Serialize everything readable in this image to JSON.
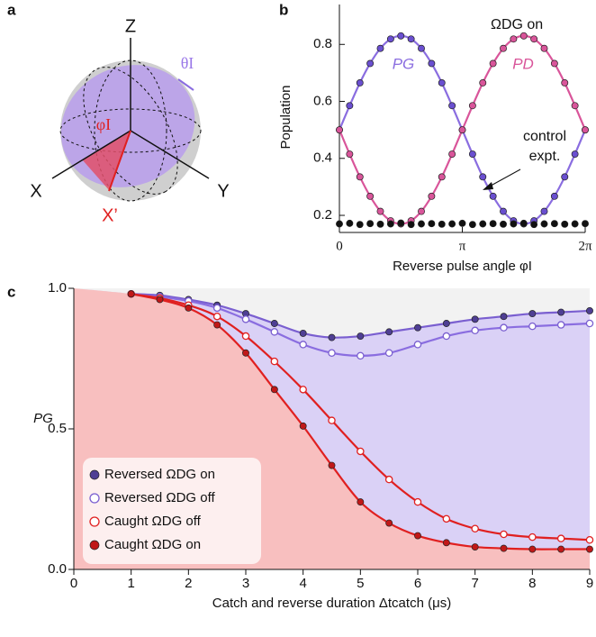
{
  "panel_labels": [
    "a",
    "b",
    "c"
  ],
  "diagram": {
    "labels": {
      "z": "Z",
      "x": "X",
      "y": "Y",
      "x_prime": "X’",
      "theta": "θI",
      "phi": "φI"
    }
  },
  "chart_data": [
    {
      "type": "line",
      "x_label": "Reverse pulse angle φI",
      "y_label": "Population",
      "annotations": {
        "omega": "ΩDG on",
        "control": [
          "control",
          "expt."
        ]
      },
      "xlim": [
        0,
        6.28319
      ],
      "ylim": [
        0.14,
        0.94
      ],
      "xticks": [
        {
          "value": 0,
          "label": "0"
        },
        {
          "value": 3.14159,
          "label": "π"
        },
        {
          "value": 6.28319,
          "label": "2π"
        }
      ],
      "yticks": [
        0.2,
        0.4,
        0.6,
        0.8
      ],
      "x": [
        0,
        0.2618,
        0.5236,
        0.7854,
        1.0472,
        1.309,
        1.5708,
        1.8326,
        2.0944,
        2.3562,
        2.618,
        2.8798,
        3.1416,
        3.4034,
        3.6652,
        3.927,
        4.1888,
        4.4506,
        4.7124,
        4.9742,
        5.236,
        5.4978,
        5.7596,
        6.0214,
        6.2832
      ],
      "series": [
        {
          "name": "PG",
          "color": "#8a6de0",
          "marker_color": "#6a4fd0",
          "line": true,
          "values": [
            0.5,
            0.585,
            0.665,
            0.733,
            0.786,
            0.819,
            0.83,
            0.819,
            0.786,
            0.733,
            0.665,
            0.585,
            0.5,
            0.415,
            0.335,
            0.267,
            0.214,
            0.181,
            0.17,
            0.181,
            0.214,
            0.267,
            0.335,
            0.415,
            0.5
          ]
        },
        {
          "name": "PD",
          "color": "#d9559a",
          "marker_color": "#d9559a",
          "line": true,
          "values": [
            0.5,
            0.415,
            0.335,
            0.267,
            0.214,
            0.181,
            0.17,
            0.181,
            0.214,
            0.267,
            0.335,
            0.415,
            0.5,
            0.585,
            0.665,
            0.733,
            0.786,
            0.819,
            0.83,
            0.819,
            0.786,
            0.733,
            0.665,
            0.585,
            0.5
          ]
        },
        {
          "color": "#111111",
          "marker_color": "#111111",
          "line": false,
          "values": [
            0.17,
            0.172,
            0.168,
            0.171,
            0.169,
            0.17,
            0.173,
            0.168,
            0.17,
            0.171,
            0.169,
            0.17,
            0.172,
            0.168,
            0.17,
            0.171,
            0.169,
            0.17,
            0.172,
            0.168,
            0.17,
            0.171,
            0.169,
            0.17,
            0.171
          ]
        }
      ]
    },
    {
      "type": "line",
      "x_label": "Catch and reverse duration Δtcatch (μs)",
      "y_label": "PG",
      "background": "#f2f2f2",
      "xlim": [
        0,
        9
      ],
      "ylim": [
        0,
        1
      ],
      "xticks": [
        0,
        1,
        2,
        3,
        4,
        5,
        6,
        7,
        8,
        9
      ],
      "yticks": [
        {
          "value": 0,
          "label": "0.0"
        },
        {
          "value": 0.5,
          "label": "0.5"
        },
        {
          "value": 1,
          "label": "1.0"
        }
      ],
      "x": [
        1,
        1.5,
        2,
        2.5,
        3,
        3.5,
        4,
        4.5,
        5,
        5.5,
        6,
        6.5,
        7,
        7.5,
        8,
        8.5,
        9
      ],
      "series": [
        {
          "name": "Reversed ΩDG on",
          "color": "#7a5fd0",
          "marker_color": "#4f3f94",
          "filled": true,
          "line": true,
          "area_fill": "#dad1f6",
          "values": [
            0.98,
            0.975,
            0.96,
            0.94,
            0.91,
            0.875,
            0.84,
            0.825,
            0.83,
            0.845,
            0.86,
            0.875,
            0.89,
            0.9,
            0.91,
            0.915,
            0.92
          ]
        },
        {
          "name": "Reversed ΩDG off",
          "color": "#8a6de0",
          "marker_color": "#7a5fd0",
          "filled": false,
          "line": true,
          "values": [
            0.98,
            0.97,
            0.955,
            0.93,
            0.89,
            0.845,
            0.8,
            0.77,
            0.76,
            0.77,
            0.8,
            0.83,
            0.85,
            0.86,
            0.865,
            0.87,
            0.875
          ]
        },
        {
          "name": "Caught ΩDG off",
          "color": "#e02020",
          "marker_color": "#e02020",
          "filled": false,
          "line": true,
          "values": [
            0.98,
            0.965,
            0.94,
            0.9,
            0.83,
            0.74,
            0.64,
            0.53,
            0.42,
            0.32,
            0.24,
            0.18,
            0.145,
            0.125,
            0.115,
            0.11,
            0.105
          ]
        },
        {
          "name": "Caught ΩDG on",
          "color": "#e02020",
          "marker_color": "#c01818",
          "filled": true,
          "line": true,
          "area_fill": "#f8bfbf",
          "values": [
            0.98,
            0.96,
            0.93,
            0.87,
            0.77,
            0.64,
            0.51,
            0.37,
            0.24,
            0.165,
            0.12,
            0.095,
            0.08,
            0.075,
            0.072,
            0.072,
            0.072
          ]
        }
      ]
    }
  ]
}
